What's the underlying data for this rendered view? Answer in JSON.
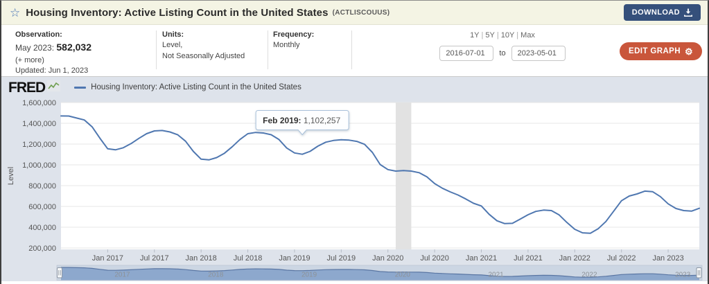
{
  "header": {
    "title": "Housing Inventory: Active Listing Count in the United States",
    "series_id": "(ACTLISCOUUS)",
    "download_label": "DOWNLOAD"
  },
  "controls": {
    "observation": {
      "label": "Observation:",
      "date": "May 2023:",
      "value": "582,032",
      "more": "(+ more)",
      "updated": "Updated: Jun 1, 2023"
    },
    "units": {
      "label": "Units:",
      "line1": "Level,",
      "line2": "Not Seasonally Adjusted"
    },
    "frequency": {
      "label": "Frequency:",
      "value": "Monthly"
    },
    "range_links": [
      "1Y",
      "5Y",
      "10Y",
      "Max"
    ],
    "range_separator": "|",
    "date_from": "2016-07-01",
    "to_label": "to",
    "date_to": "2023-05-01",
    "edit_graph_label": "EDIT GRAPH"
  },
  "chart": {
    "brand": "FRED",
    "legend": "Housing Inventory: Active Listing Count in the United States",
    "tooltip": {
      "label": "Feb 2019:",
      "value": "1,102,257"
    }
  },
  "colors": {
    "header_bg": "#f4f4e4",
    "download_bg": "#35507b",
    "edit_bg": "#c9563b",
    "chart_bg": "#dee3eb",
    "plot_bg": "#ffffff",
    "gridline": "#e7e7e7",
    "line_color": "#4f77b0",
    "recession_band": "#e2e2e2",
    "axis_text": "#555555",
    "nav_track": "#ccd6e3",
    "nav_fill": "#8da8cd",
    "nav_line": "#5a76a3",
    "nav_label": "#8d9298",
    "tooltip_border": "#a9c1da",
    "tooltip_bg": "#fdfeff"
  },
  "chart_data": {
    "type": "line",
    "title": "Housing Inventory: Active Listing Count in the United States",
    "xlabel": "",
    "ylabel": "Level",
    "ylim": [
      200000,
      1600000
    ],
    "grid": true,
    "legend_position": "top-left",
    "start_month": "2016-07",
    "end_month": "2023-05",
    "frequency": "Monthly",
    "y_ticks": [
      {
        "v": 200000,
        "label": "200,000"
      },
      {
        "v": 400000,
        "label": "400,000"
      },
      {
        "v": 600000,
        "label": "600,000"
      },
      {
        "v": 800000,
        "label": "800,000"
      },
      {
        "v": 1000000,
        "label": "1,000,000"
      },
      {
        "v": 1200000,
        "label": "1,200,000"
      },
      {
        "v": 1400000,
        "label": "1,400,000"
      },
      {
        "v": 1600000,
        "label": "1,600,000"
      }
    ],
    "x_ticks": [
      {
        "month": "2017-01",
        "label": "Jan 2017"
      },
      {
        "month": "2017-07",
        "label": "Jul 2017"
      },
      {
        "month": "2018-01",
        "label": "Jan 2018"
      },
      {
        "month": "2018-07",
        "label": "Jul 2018"
      },
      {
        "month": "2019-01",
        "label": "Jan 2019"
      },
      {
        "month": "2019-07",
        "label": "Jul 2019"
      },
      {
        "month": "2020-01",
        "label": "Jan 2020"
      },
      {
        "month": "2020-07",
        "label": "Jul 2020"
      },
      {
        "month": "2021-01",
        "label": "Jan 2021"
      },
      {
        "month": "2021-07",
        "label": "Jul 2021"
      },
      {
        "month": "2022-01",
        "label": "Jan 2022"
      },
      {
        "month": "2022-07",
        "label": "Jul 2022"
      },
      {
        "month": "2023-01",
        "label": "Jan 2023"
      }
    ],
    "recession_band": {
      "from": "2020-02",
      "to": "2020-04"
    },
    "tooltip_point": {
      "month": "2019-02",
      "value": 1102257
    },
    "navigator_years": [
      {
        "month": "2017-01",
        "label": "2017"
      },
      {
        "month": "2018-01",
        "label": "2018"
      },
      {
        "month": "2019-01",
        "label": "2019"
      },
      {
        "month": "2020-01",
        "label": "2020"
      },
      {
        "month": "2021-01",
        "label": "2021"
      },
      {
        "month": "2022-01",
        "label": "2022"
      },
      {
        "month": "2023-01",
        "label": "2023"
      }
    ],
    "series": [
      {
        "name": "Housing Inventory: Active Listing Count in the United States",
        "color": "#4f77b0",
        "monthly_values": [
          1471000,
          1470000,
          1451000,
          1432000,
          1366000,
          1256000,
          1155000,
          1145000,
          1165000,
          1205000,
          1255000,
          1300000,
          1327000,
          1331000,
          1317000,
          1289000,
          1228000,
          1130000,
          1055000,
          1048000,
          1070000,
          1112000,
          1175000,
          1245000,
          1300000,
          1312000,
          1307000,
          1290000,
          1244000,
          1162000,
          1115000,
          1102257,
          1130000,
          1180000,
          1218000,
          1235000,
          1242000,
          1238000,
          1226000,
          1198000,
          1120000,
          1003000,
          955000,
          940000,
          945000,
          940000,
          925000,
          885000,
          820000,
          775000,
          740000,
          710000,
          672000,
          630000,
          605000,
          525000,
          462000,
          435000,
          437000,
          478000,
          520000,
          552000,
          565000,
          560000,
          518000,
          445000,
          380000,
          346000,
          342000,
          385000,
          455000,
          555000,
          655000,
          700000,
          720000,
          747000,
          742000,
          695000,
          625000,
          580000,
          560000,
          555000,
          582032
        ]
      }
    ]
  }
}
